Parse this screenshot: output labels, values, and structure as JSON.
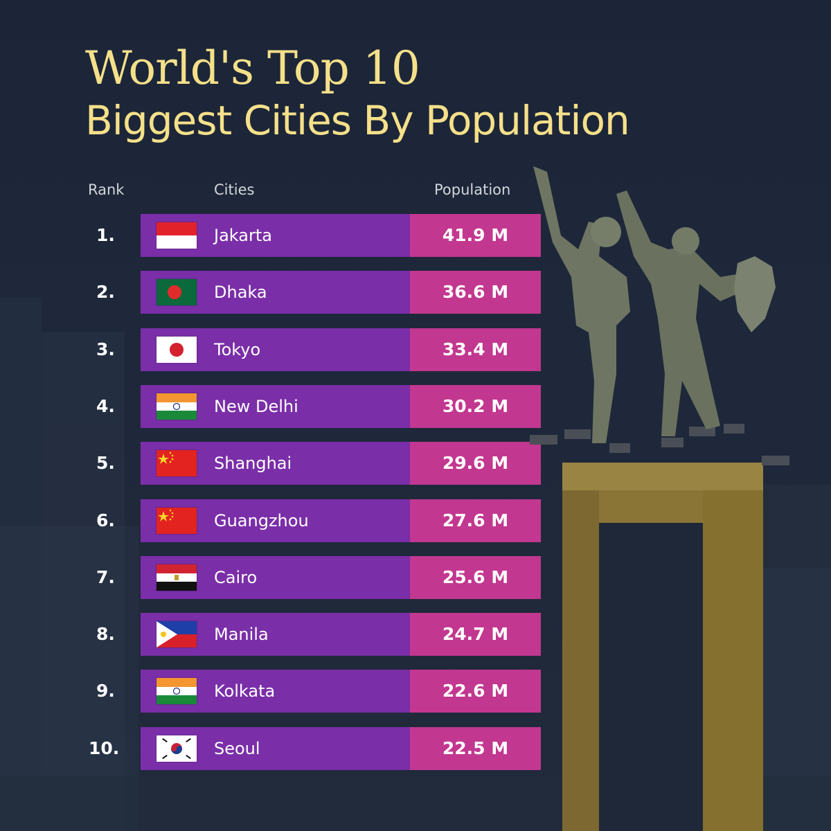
{
  "title_line1": "World's Top 10",
  "title_line2": "Biggest Cities By Population",
  "headers": {
    "rank": "Rank",
    "cities": "Cities",
    "population": "Population"
  },
  "colors": {
    "title": "#f5e08a",
    "city_bar": "#7a2ea8",
    "population_bar": "#c2378f",
    "background": "#1e283a"
  },
  "chart_data": {
    "type": "table",
    "columns": [
      "Rank",
      "Cities",
      "Population"
    ],
    "rows": [
      {
        "rank": "1.",
        "city": "Jakarta",
        "flag": "indonesia-flag-icon",
        "population": "41.9 M",
        "value": 41.9
      },
      {
        "rank": "2.",
        "city": "Dhaka",
        "flag": "bangladesh-flag-icon",
        "population": "36.6 M",
        "value": 36.6
      },
      {
        "rank": "3.",
        "city": "Tokyo",
        "flag": "japan-flag-icon",
        "population": "33.4 M",
        "value": 33.4
      },
      {
        "rank": "4.",
        "city": "New Delhi",
        "flag": "india-flag-icon",
        "population": "30.2 M",
        "value": 30.2
      },
      {
        "rank": "5.",
        "city": "Shanghai",
        "flag": "china-flag-icon",
        "population": "29.6 M",
        "value": 29.6
      },
      {
        "rank": "6.",
        "city": "Guangzhou",
        "flag": "china-flag-icon",
        "population": "27.6 M",
        "value": 27.6
      },
      {
        "rank": "7.",
        "city": "Cairo",
        "flag": "egypt-flag-icon",
        "population": "25.6 M",
        "value": 25.6
      },
      {
        "rank": "8.",
        "city": "Manila",
        "flag": "philippines-flag-icon",
        "population": "24.7 M",
        "value": 24.7
      },
      {
        "rank": "9.",
        "city": "Kolkata",
        "flag": "india-flag-icon",
        "population": "22.6 M",
        "value": 22.6
      },
      {
        "rank": "10.",
        "city": "Seoul",
        "flag": "south-korea-flag-icon",
        "population": "22.5 M",
        "value": 22.5
      }
    ]
  }
}
